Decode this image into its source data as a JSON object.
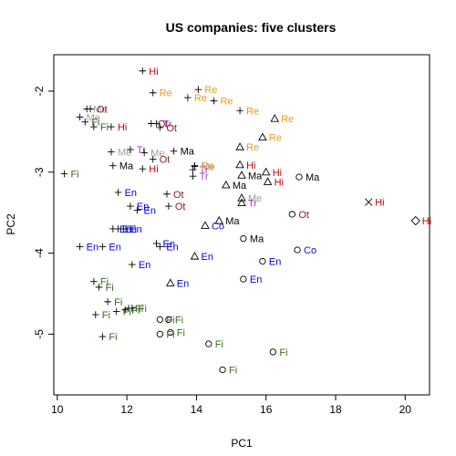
{
  "chart_data": {
    "type": "scatter",
    "title": "US companies: five clusters",
    "xlabel": "PC1",
    "ylabel": "PC2",
    "xlim": [
      9.9,
      20.7
    ],
    "ylim": [
      -5.75,
      -1.55
    ],
    "xticks": [
      10,
      12,
      14,
      16,
      18,
      20
    ],
    "yticks": [
      -2,
      -3,
      -4,
      -5
    ],
    "grid": false,
    "label_colors": {
      "Hi": "#cc0000",
      "Re": "#e69b22",
      "Ot": "#8b1a1a",
      "Ma": "#000000",
      "Me": "#a0a0a0",
      "Tr": "#a040c8",
      "En": "#0000ee",
      "Co": "#1010cc",
      "Fi": "#3a6b1e"
    },
    "clusters": [
      {
        "symbol": "plus",
        "points": [
          {
            "x": 12.45,
            "y": -1.75,
            "label": "Hi"
          },
          {
            "x": 12.75,
            "y": -2.02,
            "label": "Re"
          },
          {
            "x": 14.05,
            "y": -1.98,
            "label": "Re"
          },
          {
            "x": 13.75,
            "y": -2.08,
            "label": "Re"
          },
          {
            "x": 14.5,
            "y": -2.12,
            "label": "Re"
          },
          {
            "x": 15.25,
            "y": -2.24,
            "label": "Re"
          },
          {
            "x": 10.85,
            "y": -2.22,
            "label": "Me"
          },
          {
            "x": 10.95,
            "y": -2.22,
            "label": "Ot"
          },
          {
            "x": 10.65,
            "y": -2.32,
            "label": "Me"
          },
          {
            "x": 10.8,
            "y": -2.38,
            "label": "Fi"
          },
          {
            "x": 11.05,
            "y": -2.44,
            "label": "Fi"
          },
          {
            "x": 11.55,
            "y": -2.44,
            "label": "Hi"
          },
          {
            "x": 12.7,
            "y": -2.4,
            "label": "Ot"
          },
          {
            "x": 12.85,
            "y": -2.4,
            "label": "Tr"
          },
          {
            "x": 12.95,
            "y": -2.45,
            "label": "Ot"
          },
          {
            "x": 11.55,
            "y": -2.75,
            "label": "Me"
          },
          {
            "x": 12.1,
            "y": -2.72,
            "label": "Tr"
          },
          {
            "x": 12.5,
            "y": -2.76,
            "label": "Me"
          },
          {
            "x": 12.75,
            "y": -2.84,
            "label": "Ot"
          },
          {
            "x": 11.6,
            "y": -2.92,
            "label": "Ma"
          },
          {
            "x": 12.45,
            "y": -2.96,
            "label": "Hi"
          },
          {
            "x": 10.2,
            "y": -3.02,
            "label": "Fi"
          },
          {
            "x": 13.35,
            "y": -2.74,
            "label": "Ma"
          },
          {
            "x": 13.95,
            "y": -2.93,
            "label": "Me"
          },
          {
            "x": 13.9,
            "y": -2.97,
            "label": "Tr"
          },
          {
            "x": 13.9,
            "y": -3.05,
            "label": "Tr"
          },
          {
            "x": 13.95,
            "y": -2.92,
            "label": "Re"
          },
          {
            "x": 13.15,
            "y": -3.27,
            "label": "Ot"
          },
          {
            "x": 13.2,
            "y": -3.42,
            "label": "Ot"
          },
          {
            "x": 11.75,
            "y": -3.25,
            "label": "En"
          },
          {
            "x": 12.1,
            "y": -3.42,
            "label": "En"
          },
          {
            "x": 12.3,
            "y": -3.47,
            "label": "En"
          },
          {
            "x": 11.6,
            "y": -3.7,
            "label": "En"
          },
          {
            "x": 11.75,
            "y": -3.7,
            "label": "En"
          },
          {
            "x": 11.9,
            "y": -3.7,
            "label": "En"
          },
          {
            "x": 10.65,
            "y": -3.92,
            "label": "En"
          },
          {
            "x": 11.3,
            "y": -3.92,
            "label": "En"
          },
          {
            "x": 12.85,
            "y": -3.88,
            "label": "En"
          },
          {
            "x": 12.95,
            "y": -3.92,
            "label": "En"
          },
          {
            "x": 12.15,
            "y": -4.14,
            "label": "En"
          },
          {
            "x": 11.05,
            "y": -4.35,
            "label": "Fi"
          },
          {
            "x": 11.2,
            "y": -4.42,
            "label": "Fi"
          },
          {
            "x": 11.45,
            "y": -4.6,
            "label": "Fi"
          },
          {
            "x": 11.1,
            "y": -4.76,
            "label": "Fi"
          },
          {
            "x": 11.7,
            "y": -4.72,
            "label": "Fi"
          },
          {
            "x": 11.95,
            "y": -4.7,
            "label": "Fi"
          },
          {
            "x": 12.05,
            "y": -4.68,
            "label": "Fi"
          },
          {
            "x": 12.15,
            "y": -4.68,
            "label": "Fi"
          },
          {
            "x": 11.3,
            "y": -5.03,
            "label": "Fi"
          }
        ]
      },
      {
        "symbol": "triangle",
        "points": [
          {
            "x": 16.25,
            "y": -2.34,
            "label": "Re"
          },
          {
            "x": 15.9,
            "y": -2.57,
            "label": "Re"
          },
          {
            "x": 15.25,
            "y": -2.69,
            "label": "Re"
          },
          {
            "x": 15.25,
            "y": -2.91,
            "label": "Hi"
          },
          {
            "x": 15.3,
            "y": -3.04,
            "label": "Ma"
          },
          {
            "x": 16.0,
            "y": -3.0,
            "label": "Hi"
          },
          {
            "x": 16.05,
            "y": -3.12,
            "label": "Hi"
          },
          {
            "x": 14.85,
            "y": -3.16,
            "label": "Ma"
          },
          {
            "x": 15.3,
            "y": -3.32,
            "label": "Me"
          },
          {
            "x": 15.3,
            "y": -3.38,
            "label": "Tr"
          },
          {
            "x": 14.65,
            "y": -3.6,
            "label": "Ma"
          },
          {
            "x": 14.25,
            "y": -3.66,
            "label": "Co"
          },
          {
            "x": 13.95,
            "y": -4.04,
            "label": "En"
          },
          {
            "x": 13.25,
            "y": -4.37,
            "label": "En"
          }
        ]
      },
      {
        "symbol": "circle",
        "points": [
          {
            "x": 16.95,
            "y": -3.06,
            "label": "Ma"
          },
          {
            "x": 16.75,
            "y": -3.52,
            "label": "Ot"
          },
          {
            "x": 15.35,
            "y": -3.82,
            "label": "Ma"
          },
          {
            "x": 16.9,
            "y": -3.96,
            "label": "Co"
          },
          {
            "x": 15.9,
            "y": -4.1,
            "label": "En"
          },
          {
            "x": 15.35,
            "y": -4.32,
            "label": "En"
          },
          {
            "x": 12.95,
            "y": -4.82,
            "label": "Fi"
          },
          {
            "x": 13.2,
            "y": -4.82,
            "label": "Fi"
          },
          {
            "x": 13.25,
            "y": -4.98,
            "label": "Fi"
          },
          {
            "x": 12.95,
            "y": -5.0,
            "label": "Fi"
          },
          {
            "x": 14.35,
            "y": -5.12,
            "label": "Fi"
          },
          {
            "x": 16.2,
            "y": -5.22,
            "label": "Fi"
          },
          {
            "x": 14.75,
            "y": -5.44,
            "label": "Fi"
          }
        ]
      },
      {
        "symbol": "cross",
        "points": [
          {
            "x": 18.95,
            "y": -3.37,
            "label": "Hi"
          }
        ]
      },
      {
        "symbol": "diamond",
        "points": [
          {
            "x": 20.3,
            "y": -3.6,
            "label": "Hi"
          }
        ]
      }
    ]
  }
}
